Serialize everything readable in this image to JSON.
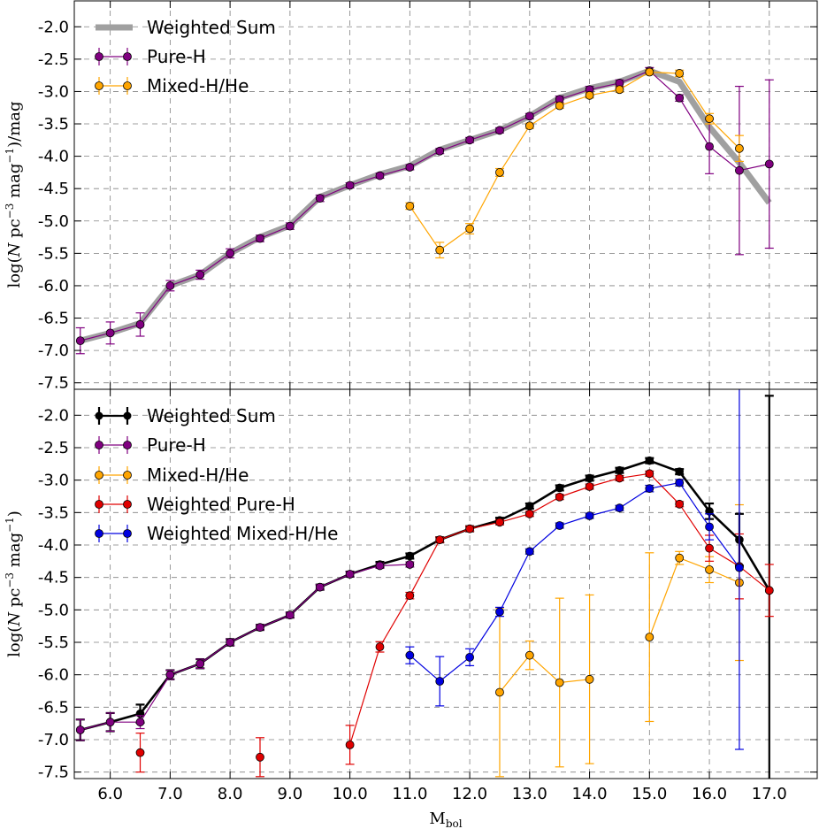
{
  "figure": {
    "xlabel": "M",
    "xlabel_sub": "bol"
  },
  "chart_data": [
    {
      "type": "line",
      "panel": "top",
      "ylabel": "log(N pc^-3 mag^-1)/mag",
      "ylabel_parts": {
        "pre": "log(",
        "n": "N",
        "pc": " pc",
        "pc_exp": "−3",
        "mag": " mag",
        "mag_exp": "−1",
        "post": ")/mag"
      },
      "xlim": [
        5.4,
        17.8
      ],
      "ylim": [
        -7.6,
        -1.6
      ],
      "x_ticks": [
        6.0,
        7.0,
        8.0,
        9.0,
        10.0,
        11.0,
        12.0,
        13.0,
        14.0,
        15.0,
        16.0,
        17.0
      ],
      "x_tick_labels": [
        "6.0",
        "7.0",
        "8.0",
        "9.0",
        "10.0",
        "11.0",
        "12.0",
        "13.0",
        "14.0",
        "15.0",
        "16.0",
        "17.0"
      ],
      "y_ticks": [
        -2.0,
        -2.5,
        -3.0,
        -3.5,
        -4.0,
        -4.5,
        -5.0,
        -5.5,
        -6.0,
        -6.5,
        -7.0,
        -7.5
      ],
      "y_tick_labels": [
        "-2.0",
        "-2.5",
        "-3.0",
        "-3.5",
        "-4.0",
        "-4.5",
        "-5.0",
        "-5.5",
        "-6.0",
        "-6.5",
        "-7.0",
        "-7.5"
      ],
      "grid": true,
      "legend": "top-left",
      "series": [
        {
          "name": "Weighted Sum",
          "color": "#a0a0a0",
          "style": "thick-line",
          "x": [
            5.5,
            6.0,
            6.5,
            7.0,
            7.5,
            8.0,
            8.5,
            9.0,
            9.5,
            10.0,
            10.5,
            11.0,
            11.5,
            12.0,
            12.5,
            13.0,
            13.5,
            14.0,
            14.5,
            15.0,
            15.5,
            16.0,
            16.5,
            17.0
          ],
          "y": [
            -6.85,
            -6.73,
            -6.58,
            -6.0,
            -5.83,
            -5.5,
            -5.25,
            -5.07,
            -4.63,
            -4.45,
            -4.28,
            -4.15,
            -3.9,
            -3.75,
            -3.6,
            -3.38,
            -3.1,
            -2.95,
            -2.85,
            -2.68,
            -2.85,
            -3.55,
            -4.1,
            -4.72
          ]
        },
        {
          "name": "Pure-H",
          "color": "#800080",
          "style": "line-markers",
          "x": [
            5.5,
            6.0,
            6.5,
            7.0,
            7.5,
            8.0,
            8.5,
            9.0,
            9.5,
            10.0,
            10.5,
            11.0,
            11.5,
            12.0,
            12.5,
            13.0,
            13.5,
            14.0,
            14.5,
            15.0,
            15.5,
            16.0,
            16.5,
            17.0
          ],
          "y": [
            -6.85,
            -6.73,
            -6.6,
            -6.0,
            -5.83,
            -5.5,
            -5.27,
            -5.08,
            -4.65,
            -4.45,
            -4.3,
            -4.17,
            -3.92,
            -3.75,
            -3.6,
            -3.38,
            -3.12,
            -2.97,
            -2.87,
            -2.68,
            -3.1,
            -3.85,
            -4.22,
            -4.12
          ],
          "err": [
            0.2,
            0.17,
            0.18,
            0.08,
            0.07,
            0.07,
            0.05,
            0.05,
            0.05,
            0.04,
            0.04,
            0.04,
            0.04,
            0.04,
            0.04,
            0.04,
            0.05,
            0.05,
            0.05,
            0.05,
            0.05,
            0.42,
            1.3,
            1.3
          ]
        },
        {
          "name": "Mixed-H/He",
          "color": "#ffa500",
          "style": "line-markers",
          "x": [
            11.0,
            11.5,
            12.0,
            12.5,
            13.0,
            13.5,
            14.0,
            14.5,
            15.0,
            15.5,
            16.0,
            16.5
          ],
          "y": [
            -4.77,
            -5.45,
            -5.12,
            -4.25,
            -3.53,
            -3.22,
            -3.06,
            -2.97,
            -2.7,
            -2.72,
            -3.42,
            -3.88
          ],
          "err": [
            0.05,
            0.12,
            0.08,
            0.06,
            0.04,
            0.04,
            0.04,
            0.04,
            0.04,
            0.05,
            0.08,
            0.2
          ]
        }
      ]
    },
    {
      "type": "line",
      "panel": "bottom",
      "ylabel": "log(N pc^-3 mag^-1)",
      "ylabel_parts": {
        "pre": "log(",
        "n": "N",
        "pc": " pc",
        "pc_exp": "−3",
        "mag": " mag",
        "mag_exp": "−1",
        "post": ")"
      },
      "xlim": [
        5.4,
        17.8
      ],
      "ylim": [
        -7.6,
        -1.6
      ],
      "x_ticks": [
        6.0,
        7.0,
        8.0,
        9.0,
        10.0,
        11.0,
        12.0,
        13.0,
        14.0,
        15.0,
        16.0,
        17.0
      ],
      "x_tick_labels": [
        "6.0",
        "7.0",
        "8.0",
        "9.0",
        "10.0",
        "11.0",
        "12.0",
        "13.0",
        "14.0",
        "15.0",
        "16.0",
        "17.0"
      ],
      "y_ticks": [
        -2.0,
        -2.5,
        -3.0,
        -3.5,
        -4.0,
        -4.5,
        -5.0,
        -5.5,
        -6.0,
        -6.5,
        -7.0,
        -7.5
      ],
      "y_tick_labels": [
        "-2.0",
        "-2.5",
        "-3.0",
        "-3.5",
        "-4.0",
        "-4.5",
        "-5.0",
        "-5.5",
        "-6.0",
        "-6.5",
        "-7.0",
        "-7.5"
      ],
      "grid": true,
      "legend": "top-left",
      "series": [
        {
          "name": "Weighted Sum",
          "color": "#000000",
          "style": "thick-line-markers",
          "x": [
            5.5,
            6.0,
            6.5,
            7.0,
            7.5,
            8.0,
            8.5,
            9.0,
            9.5,
            10.0,
            10.5,
            11.0,
            11.5,
            12.0,
            12.5,
            13.0,
            13.5,
            14.0,
            14.5,
            15.0,
            15.5,
            16.0,
            16.5,
            17.0
          ],
          "y": [
            -6.85,
            -6.73,
            -6.6,
            -6.0,
            -5.83,
            -5.5,
            -5.27,
            -5.08,
            -4.65,
            -4.45,
            -4.3,
            -4.17,
            -3.92,
            -3.75,
            -3.62,
            -3.4,
            -3.12,
            -2.97,
            -2.85,
            -2.7,
            -2.87,
            -3.48,
            -3.92,
            -4.7
          ],
          "err": [
            0.16,
            0.14,
            0.14,
            0.07,
            0.07,
            0.05,
            0.04,
            0.04,
            0.04,
            0.04,
            0.04,
            0.04,
            0.04,
            0.04,
            0.04,
            0.04,
            0.04,
            0.04,
            0.04,
            0.04,
            0.04,
            0.12,
            0.4,
            3.0
          ]
        },
        {
          "name": "Pure-H",
          "color": "#800080",
          "style": "line-markers",
          "x": [
            5.5,
            6.0,
            6.5,
            7.0,
            7.5,
            8.0,
            8.5,
            9.0,
            9.5,
            10.0,
            10.5,
            11.0
          ],
          "y": [
            -6.85,
            -6.73,
            -6.73,
            -6.0,
            -5.83,
            -5.5,
            -5.27,
            -5.08,
            -4.65,
            -4.45,
            -4.32,
            -4.3
          ],
          "err": [
            0.16,
            0.14,
            0.1,
            0.07,
            0.07,
            0.05,
            0.04,
            0.04,
            0.04,
            0.04,
            0.04,
            0.04
          ]
        },
        {
          "name": "Mixed-H/He",
          "color": "#ffa500",
          "style": "line-markers",
          "x": [
            12.5,
            13.0,
            13.5,
            14.0
          ],
          "y": [
            -6.27,
            -5.7,
            -6.12,
            -6.07
          ],
          "err": [
            1.3,
            0.22,
            1.3,
            1.3
          ],
          "x2": [
            15.0,
            15.5,
            16.0,
            16.5
          ],
          "y2": [
            -5.42,
            -4.2,
            -4.38,
            -4.58
          ],
          "err2": [
            1.3,
            0.1,
            0.2,
            1.2
          ]
        },
        {
          "name": "Weighted Pure-H",
          "color": "#e00000",
          "style": "line-markers",
          "x": [
            10.0,
            10.5,
            11.0,
            11.5,
            12.0,
            12.5,
            13.0,
            13.5,
            14.0,
            14.5,
            15.0,
            15.5,
            16.0,
            16.5,
            17.0
          ],
          "y": [
            -7.08,
            -5.57,
            -4.78,
            -3.92,
            -3.75,
            -3.65,
            -3.52,
            -3.26,
            -3.1,
            -2.97,
            -2.9,
            -3.37,
            -4.05,
            -4.33,
            -4.7
          ],
          "err": [
            0.3,
            0.08,
            0.05,
            0.04,
            0.04,
            0.04,
            0.04,
            0.04,
            0.04,
            0.04,
            0.04,
            0.04,
            0.2,
            0.5,
            0.4
          ],
          "isolated_x": [
            6.5,
            8.5
          ],
          "isolated_y": [
            -7.2,
            -7.27
          ],
          "isolated_err": [
            0.3,
            0.3
          ]
        },
        {
          "name": "Weighted Mixed-H/He",
          "color": "#0000e0",
          "style": "line-markers",
          "x": [
            11.0,
            11.5,
            12.0,
            12.5,
            13.0,
            13.5,
            14.0,
            14.5,
            15.0,
            15.5,
            16.0,
            16.5
          ],
          "y": [
            -5.7,
            -6.1,
            -5.73,
            -5.03,
            -4.1,
            -3.7,
            -3.55,
            -3.43,
            -3.13,
            -3.04,
            -3.72,
            -4.35
          ],
          "err": [
            0.13,
            0.38,
            0.13,
            0.07,
            0.04,
            0.04,
            0.04,
            0.04,
            0.05,
            0.05,
            0.2,
            2.8
          ]
        }
      ]
    }
  ]
}
